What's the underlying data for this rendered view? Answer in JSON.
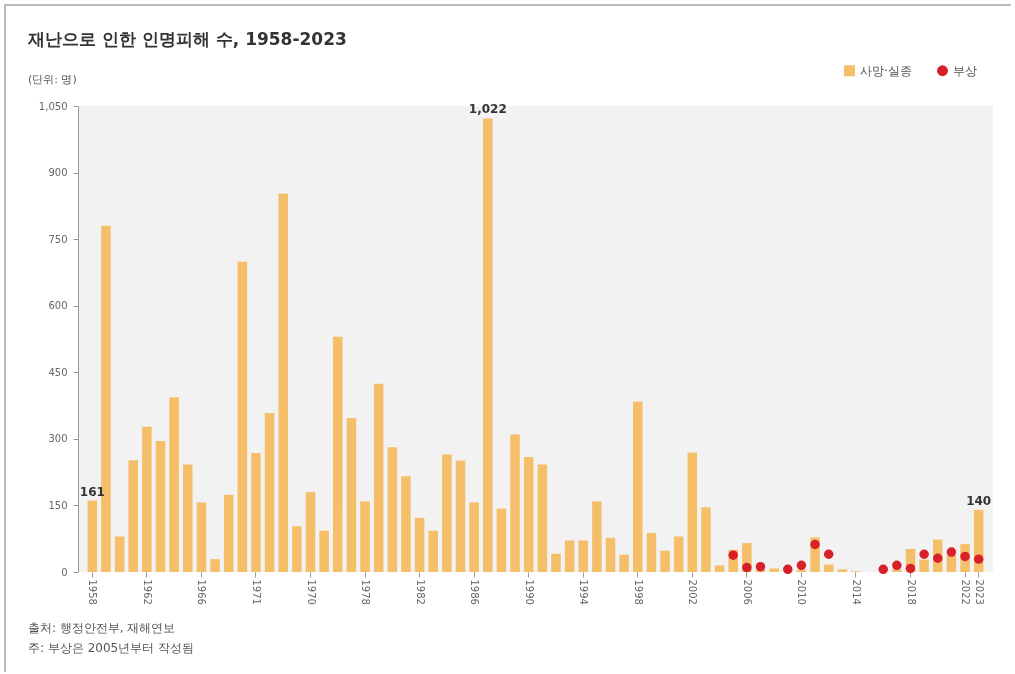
{
  "chart_data": {
    "type": "bar",
    "title": "재난으로 인한 인명피해 수, 1958-2023",
    "subtitle": "(단위: 명)",
    "categories": [
      "1958",
      null,
      null,
      null,
      "1962",
      null,
      null,
      null,
      "1966",
      null,
      null,
      null,
      "1971",
      null,
      null,
      null,
      "1970",
      null,
      null,
      null,
      "1978",
      null,
      null,
      null,
      "1982",
      null,
      null,
      null,
      "1986",
      null,
      null,
      null,
      "1990",
      null,
      null,
      null,
      "1994",
      null,
      null,
      null,
      "1998",
      null,
      null,
      null,
      "2002",
      null,
      null,
      null,
      "2006",
      null,
      null,
      null,
      "2010",
      null,
      null,
      null,
      "2014",
      null,
      null,
      null,
      "2018",
      null,
      null,
      null,
      "2022",
      "2023"
    ],
    "series": [
      {
        "name": "사망·실종",
        "type": "bar",
        "color": "#f5bf6a",
        "values": [
          161,
          780,
          80,
          252,
          327,
          295,
          394,
          242,
          157,
          29,
          174,
          699,
          268,
          358,
          852,
          103,
          180,
          93,
          530,
          347,
          159,
          424,
          281,
          216,
          122,
          93,
          265,
          251,
          157,
          1022,
          143,
          310,
          259,
          242,
          41,
          71,
          71,
          159,
          77,
          39,
          384,
          88,
          48,
          80,
          269,
          146,
          15,
          50,
          65,
          5,
          8,
          null,
          5,
          78,
          17,
          6,
          2,
          0,
          null,
          6,
          52,
          28,
          73,
          38,
          63,
          140
        ],
        "value_labels": [
          "161",
          null,
          null,
          null,
          null,
          null,
          null,
          null,
          null,
          null,
          null,
          null,
          null,
          null,
          null,
          null,
          null,
          null,
          null,
          null,
          null,
          null,
          null,
          null,
          null,
          null,
          null,
          null,
          null,
          "1,022",
          null,
          null,
          null,
          null,
          null,
          null,
          null,
          null,
          null,
          null,
          null,
          null,
          null,
          null,
          null,
          null,
          null,
          null,
          null,
          null,
          null,
          null,
          null,
          null,
          null,
          null,
          null,
          null,
          null,
          null,
          null,
          null,
          null,
          null,
          null,
          "140"
        ]
      },
      {
        "name": "부상",
        "type": "scatter",
        "color": "#d7202a",
        "values": [
          null,
          null,
          null,
          null,
          null,
          null,
          null,
          null,
          null,
          null,
          null,
          null,
          null,
          null,
          null,
          null,
          null,
          null,
          null,
          null,
          null,
          null,
          null,
          null,
          null,
          null,
          null,
          null,
          null,
          null,
          null,
          null,
          null,
          null,
          null,
          null,
          null,
          null,
          null,
          null,
          null,
          null,
          null,
          null,
          null,
          null,
          null,
          38,
          10,
          12,
          null,
          6,
          15,
          62,
          40,
          null,
          null,
          null,
          6,
          15,
          8,
          40,
          31,
          45,
          35,
          29
        ]
      }
    ],
    "marker": "circle",
    "ylim": [
      0,
      1050
    ],
    "yticks": [
      0,
      150,
      300,
      450,
      600,
      750,
      900,
      {
        "value": 1050,
        "label": "1,050"
      }
    ],
    "legend": "top right",
    "annotations": [
      "출처: 행정안전부, 재해연보",
      "주: 부상은 2005년부터 작성됨"
    ]
  }
}
